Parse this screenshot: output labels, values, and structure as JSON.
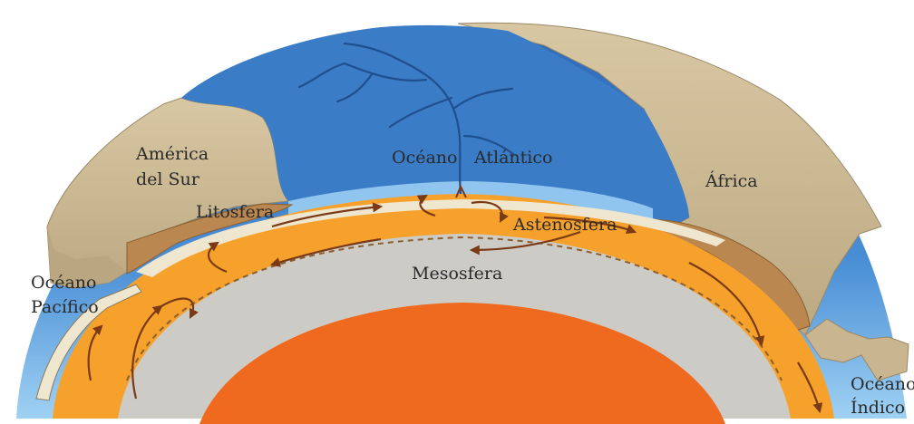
{
  "labels": {
    "south_america_line1": "América",
    "south_america_line2": "del Sur",
    "atlantic_word1": "Océano",
    "atlantic_word2": "Atlántico",
    "africa": "África",
    "lithosphere": "Litosfera",
    "asthenosphere": "Astenosfera",
    "pacific_line1": "Océano",
    "pacific_line2": "Pacífico",
    "mesosphere": "Mesosfera",
    "indian_line1": "Océano",
    "indian_line2": "Índico"
  },
  "colors": {
    "ocean": "#3f7fc9",
    "ocean_light": "#8ec3ee",
    "continent": "#cdbb98",
    "continent_shadow": "#a38d68",
    "lithosphere_brown": "#b48452",
    "crust_cream": "#efe6cf",
    "asthenosphere": "#f6a12c",
    "mesosphere": "#cdcbc6",
    "core": "#ef6a1f",
    "arrow": "#7a3a16"
  }
}
